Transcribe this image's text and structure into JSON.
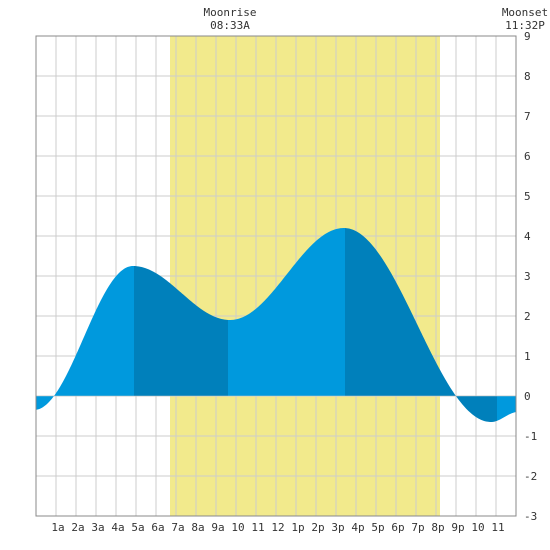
{
  "header": {
    "moonrise_label": "Moonrise",
    "moonrise_time": "08:33A",
    "moonset_label": "Moonset",
    "moonset_time": "11:32P"
  },
  "chart_data": {
    "type": "area",
    "title": "",
    "xlabel": "",
    "ylabel": "",
    "xlim": [
      0,
      24
    ],
    "ylim": [
      -3,
      9
    ],
    "y_ticks": [
      -3,
      -2,
      -1,
      0,
      1,
      2,
      3,
      4,
      5,
      6,
      7,
      8,
      9
    ],
    "x_ticks": [
      {
        "x": 1,
        "label": "1a"
      },
      {
        "x": 2,
        "label": "2a"
      },
      {
        "x": 3,
        "label": "3a"
      },
      {
        "x": 4,
        "label": "4a"
      },
      {
        "x": 5,
        "label": "5a"
      },
      {
        "x": 6,
        "label": "6a"
      },
      {
        "x": 7,
        "label": "7a"
      },
      {
        "x": 8,
        "label": "8a"
      },
      {
        "x": 9,
        "label": "9a"
      },
      {
        "x": 10,
        "label": "10"
      },
      {
        "x": 11,
        "label": "11"
      },
      {
        "x": 12,
        "label": "12"
      },
      {
        "x": 13,
        "label": "1p"
      },
      {
        "x": 14,
        "label": "2p"
      },
      {
        "x": 15,
        "label": "3p"
      },
      {
        "x": 16,
        "label": "4p"
      },
      {
        "x": 17,
        "label": "5p"
      },
      {
        "x": 18,
        "label": "6p"
      },
      {
        "x": 19,
        "label": "7p"
      },
      {
        "x": 20,
        "label": "8p"
      },
      {
        "x": 21,
        "label": "9p"
      },
      {
        "x": 22,
        "label": "10"
      },
      {
        "x": 23,
        "label": "11"
      }
    ],
    "grid": true,
    "moonlight_band": [
      6.7,
      20.2
    ],
    "tide_extremes": [
      {
        "x": -0.1,
        "y": -0.35
      },
      {
        "x": 4.85,
        "y": 3.25
      },
      {
        "x": 9.7,
        "y": 1.9
      },
      {
        "x": 15.4,
        "y": 4.2
      },
      {
        "x": 22.75,
        "y": -0.65
      },
      {
        "x": 24.1,
        "y": -0.4
      }
    ],
    "tide_shading_boundaries": [
      4.9,
      9.6,
      15.45,
      23.05
    ],
    "colors": {
      "tide_light": "#0099dd",
      "tide_dark": "#0080bb",
      "moonlight": "#f2ea8c",
      "grid": "#cccccc",
      "border": "#888888"
    }
  }
}
